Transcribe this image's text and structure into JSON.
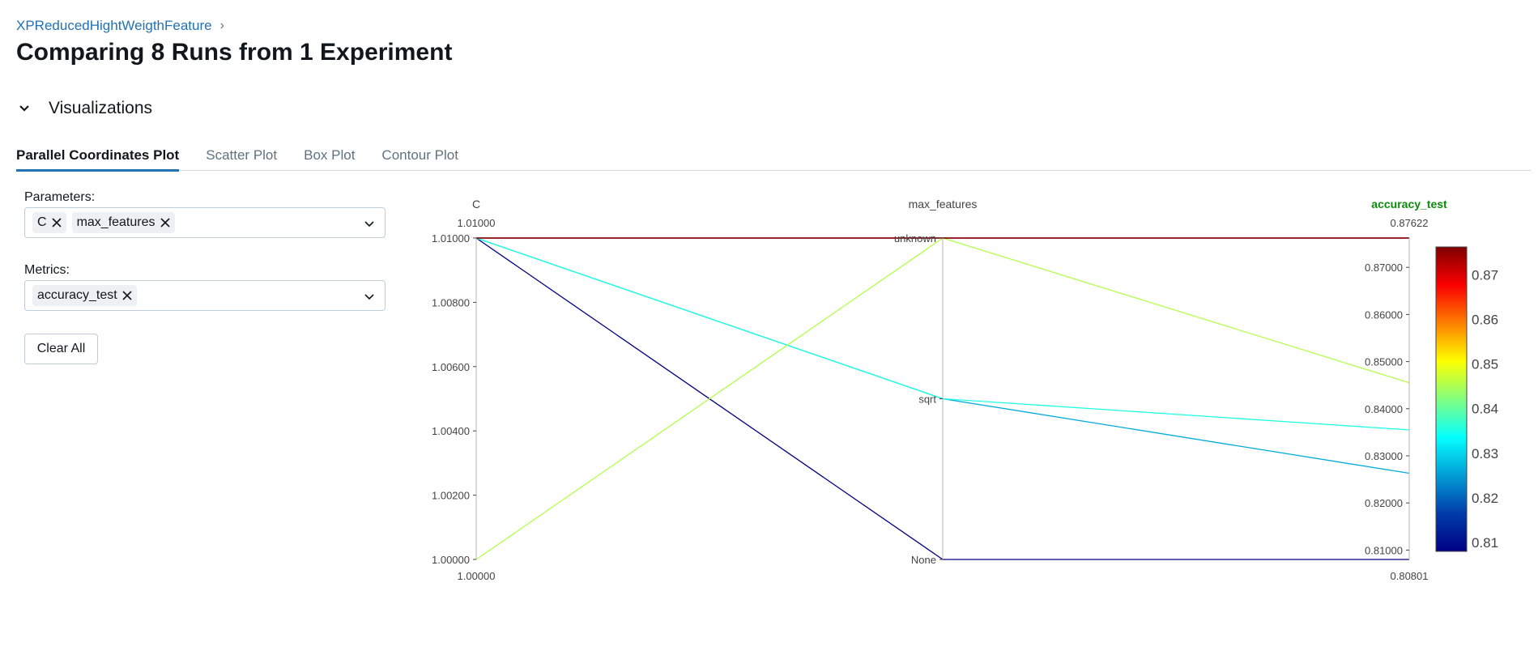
{
  "breadcrumb": {
    "experiment": "XPReducedHightWeigthFeature",
    "separator": "›"
  },
  "page": {
    "title": "Comparing 8 Runs from 1 Experiment"
  },
  "section": {
    "label": "Visualizations",
    "expanded": true
  },
  "tabs": [
    {
      "label": "Parallel Coordinates Plot",
      "active": true
    },
    {
      "label": "Scatter Plot",
      "active": false
    },
    {
      "label": "Box Plot",
      "active": false
    },
    {
      "label": "Contour Plot",
      "active": false
    }
  ],
  "filters": {
    "parameters_label": "Parameters:",
    "parameters": [
      "C",
      "max_features"
    ],
    "metrics_label": "Metrics:",
    "metrics": [
      "accuracy_test"
    ],
    "clear_all_label": "Clear All"
  },
  "colors": {
    "accent": "#2272b4",
    "metric_title": "#0a8a0a"
  },
  "chart_data": {
    "type": "parallel_coordinates",
    "axes": [
      {
        "name": "C",
        "kind": "numeric",
        "range": [
          1.0,
          1.01
        ],
        "range_labels": [
          "1.00000",
          "1.01000"
        ],
        "ticks": [
          1.0,
          1.002,
          1.004,
          1.006,
          1.008,
          1.01
        ],
        "tick_labels": [
          "1.00000",
          "1.00200",
          "1.00400",
          "1.00600",
          "1.00800",
          "1.01000"
        ]
      },
      {
        "name": "max_features",
        "kind": "categorical",
        "categories": [
          "None",
          "sqrt",
          "unknown"
        ]
      },
      {
        "name": "accuracy_test",
        "kind": "numeric",
        "range": [
          0.80801,
          0.87622
        ],
        "range_labels": [
          "0.80801",
          "0.87622"
        ],
        "ticks": [
          0.81,
          0.82,
          0.83,
          0.84,
          0.85,
          0.86,
          0.87
        ],
        "tick_labels": [
          "0.81000",
          "0.82000",
          "0.83000",
          "0.84000",
          "0.85000",
          "0.86000",
          "0.87000"
        ]
      }
    ],
    "runs": [
      {
        "C": 1.01,
        "max_features": "unknown",
        "accuracy_test": 0.87622
      },
      {
        "C": 1.01,
        "max_features": "unknown",
        "accuracy_test": 0.87622
      },
      {
        "C": 1.01,
        "max_features": "unknown",
        "accuracy_test": 0.87622
      },
      {
        "C": 1.01,
        "max_features": "unknown",
        "accuracy_test": 0.87622
      },
      {
        "C": 1.0,
        "max_features": "unknown",
        "accuracy_test": 0.8455
      },
      {
        "C": 1.01,
        "max_features": "sqrt",
        "accuracy_test": 0.8355
      },
      {
        "C": 1.01,
        "max_features": "sqrt",
        "accuracy_test": 0.8263
      },
      {
        "C": 1.01,
        "max_features": "None",
        "accuracy_test": 0.80801
      }
    ],
    "colorbar": {
      "range": [
        0.80801,
        0.87622
      ],
      "ticks": [
        0.81,
        0.82,
        0.83,
        0.84,
        0.85,
        0.86,
        0.87
      ],
      "tick_labels": [
        "0.81",
        "0.82",
        "0.83",
        "0.84",
        "0.85",
        "0.86",
        "0.87"
      ],
      "colorscale": "jet"
    }
  }
}
